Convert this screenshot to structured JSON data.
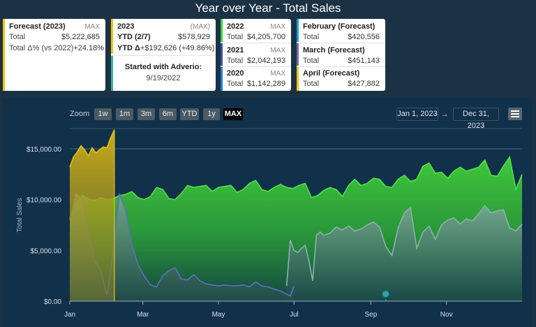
{
  "title": "Year over Year - Total Sales",
  "cards": {
    "forecast": {
      "heading": "Forecast (2023)",
      "tag": "MAX",
      "total_label": "Total",
      "total_value": "$5,222,685",
      "delta_label": "Total Δ% (vs 2022)",
      "delta_value": "+24.18%",
      "color": "#f2c500"
    },
    "ytd": {
      "heading": "2023",
      "tag": "(MAX)",
      "ytd_label": "YTD (2/7)",
      "ytd_value": "$578,929",
      "delta_label": "YTD Δ",
      "delta_value": "+$192,626 (+49.86%)",
      "started_label": "Started with Adverio:",
      "started_date": "9/19/2022",
      "color": "#f2c500",
      "color2": "#2bb3a6"
    },
    "years": [
      {
        "heading": "2022",
        "tag": "MAX",
        "label": "Total",
        "value": "$4,205,700",
        "color": "#33d633"
      },
      {
        "heading": "2021",
        "tag": "MAX",
        "label": "Total",
        "value": "$2,042,193",
        "color": "#3d4fa3"
      },
      {
        "heading": "2020",
        "tag": "MAX",
        "label": "Total",
        "value": "$1,142,289",
        "color": "#1f7fd6"
      }
    ],
    "months": [
      {
        "heading": "February (Forecast)",
        "label": "Total",
        "value": "$420,556",
        "color": "#1aa0e0"
      },
      {
        "heading": "March (Forecast)",
        "label": "Total",
        "value": "$451,143",
        "color": "#7a6aa8"
      },
      {
        "heading": "April (Forecast)",
        "label": "Total",
        "value": "$427,882",
        "color": "#f2c500"
      }
    ]
  },
  "zoom": {
    "label": "Zoom",
    "buttons": [
      "1w",
      "1m",
      "3m",
      "6m",
      "YTD",
      "1y",
      "MAX"
    ],
    "active": "MAX"
  },
  "range": {
    "from": "Jan 1, 2023",
    "arrow": "→",
    "to": "Dec 31, 2023"
  },
  "chart_data": {
    "type": "area",
    "ylabel": "Total Sales",
    "ylim": [
      0,
      17000
    ],
    "yticks": [
      0,
      5000,
      10000,
      15000
    ],
    "ytick_labels": [
      "$0.00",
      "$5,000.00",
      "$10,000.00",
      "$15,000.00"
    ],
    "x_range": [
      0,
      365
    ],
    "xticks": [
      0,
      59,
      120,
      181,
      243,
      304
    ],
    "xtick_labels": [
      "Jan",
      "Mar",
      "May",
      "Jul",
      "Sep",
      "Nov"
    ],
    "series": [
      {
        "color": "#3fc43f",
        "x": [
          0,
          5,
          10,
          15,
          20,
          25,
          30,
          35,
          40,
          45,
          50,
          55,
          60,
          65,
          70,
          75,
          80,
          85,
          90,
          95,
          100,
          105,
          110,
          115,
          120,
          125,
          130,
          135,
          140,
          145,
          150,
          155,
          160,
          165,
          170,
          175,
          180,
          185,
          190,
          195,
          200,
          205,
          210,
          215,
          220,
          225,
          230,
          235,
          240,
          245,
          250,
          255,
          260,
          265,
          270,
          275,
          280,
          285,
          290,
          295,
          300,
          305,
          310,
          315,
          320,
          325,
          330,
          335,
          340,
          345,
          350,
          355,
          360,
          365
        ],
        "values": [
          8200,
          9500,
          10400,
          10100,
          9900,
          10200,
          10000,
          10100,
          10400,
          10500,
          10800,
          10200,
          10000,
          10300,
          11200,
          11000,
          10100,
          10000,
          10600,
          11400,
          11200,
          11300,
          11400,
          10800,
          11200,
          11300,
          11400,
          10700,
          11000,
          11600,
          11900,
          11000,
          10800,
          11200,
          11500,
          11200,
          11100,
          11400,
          11600,
          10200,
          10400,
          10900,
          11200,
          11000,
          10300,
          11400,
          12000,
          11400,
          11600,
          12100,
          12000,
          11300,
          11200,
          12000,
          12400,
          11800,
          12000,
          13300,
          13600,
          12600,
          12700,
          12100,
          12800,
          13200,
          12800,
          13000,
          13200,
          13900,
          12400,
          12300,
          13300,
          14200,
          11000,
          12500
        ]
      },
      {
        "color": "#6f8aa0",
        "x": [
          0,
          5,
          10,
          15,
          20,
          25,
          30,
          35,
          40,
          45,
          50,
          55,
          60,
          65,
          70,
          75,
          80,
          85,
          90,
          95,
          100,
          105,
          110,
          115,
          120,
          125,
          130,
          135,
          140,
          145,
          150,
          155,
          160,
          165,
          170,
          175,
          180,
          185,
          190,
          195,
          200,
          205,
          210,
          215,
          220,
          225,
          230,
          235,
          240,
          245,
          250,
          255,
          260,
          265,
          270,
          275,
          280,
          285,
          290,
          295,
          300,
          305,
          310,
          315,
          320,
          325,
          330,
          335,
          340,
          345,
          350,
          355,
          360,
          365
        ],
        "values": [
          0,
          0,
          0,
          0,
          0,
          0,
          0,
          0,
          0,
          0,
          0,
          0,
          0,
          0,
          0,
          0,
          0,
          0,
          0,
          0,
          0,
          0,
          0,
          0,
          0,
          0,
          0,
          0,
          0,
          0,
          0,
          0,
          0,
          0,
          0,
          0,
          0,
          0,
          0,
          0,
          0,
          0,
          0,
          0,
          0,
          0,
          0,
          0,
          0,
          0,
          0,
          0,
          0,
          0,
          0,
          0,
          0,
          0,
          0,
          0,
          0,
          0,
          0,
          0,
          0,
          0,
          0,
          0,
          0,
          0,
          0,
          0,
          0,
          0
        ]
      },
      {
        "color": "#7f9f98",
        "x": [
          175,
          178,
          181,
          184,
          187,
          190,
          193,
          196,
          199,
          202,
          205,
          210,
          215,
          220,
          225,
          230,
          235,
          240,
          245,
          250,
          255,
          260,
          265,
          270,
          275,
          280,
          285,
          290,
          295,
          300,
          305,
          310,
          315,
          320,
          325,
          330,
          335,
          340,
          345,
          350,
          355,
          360,
          365
        ],
        "values": [
          1500,
          6000,
          5000,
          4800,
          5200,
          5500,
          4000,
          2000,
          6500,
          6800,
          6500,
          6700,
          7300,
          7000,
          7400,
          6900,
          7100,
          7500,
          7800,
          7300,
          5400,
          4500,
          7200,
          8700,
          9200,
          5200,
          6800,
          7400,
          6100,
          7500,
          8000,
          8200,
          7600,
          8100,
          7900,
          8600,
          9400,
          8700,
          8900,
          9000,
          7200,
          6900,
          7600
        ]
      },
      {
        "color": "#5a6db8",
        "x": [
          0,
          5,
          10,
          15,
          20,
          25,
          30,
          35,
          40,
          45,
          50,
          55,
          60,
          65,
          70,
          75,
          80,
          85,
          90,
          95,
          100,
          105,
          110,
          115,
          120,
          125,
          130,
          135,
          140,
          145,
          150,
          155,
          160,
          165,
          170,
          175,
          178,
          181
        ],
        "values": [
          8000,
          10600,
          10100,
          7000,
          4000,
          3000,
          600,
          5000,
          10600,
          9000,
          5600,
          3600,
          2500,
          1600,
          1400,
          2500,
          3000,
          3300,
          2200,
          2100,
          2600,
          2000,
          1700,
          1600,
          1500,
          1600,
          1500,
          1500,
          1600,
          1400,
          1900,
          1500,
          1400,
          1200,
          1000,
          700,
          500,
          1500
        ]
      },
      {
        "color": "#c9a81a",
        "x": [
          0,
          3,
          6,
          9,
          12,
          15,
          18,
          21,
          24,
          27,
          30,
          33,
          36
        ],
        "values": [
          13200,
          14200,
          14700,
          15300,
          14900,
          14300,
          15100,
          14600,
          14900,
          15200,
          15100,
          16100,
          16900
        ]
      }
    ],
    "marker": {
      "x": 255,
      "y": 500,
      "color": "#2aa3a8"
    }
  }
}
